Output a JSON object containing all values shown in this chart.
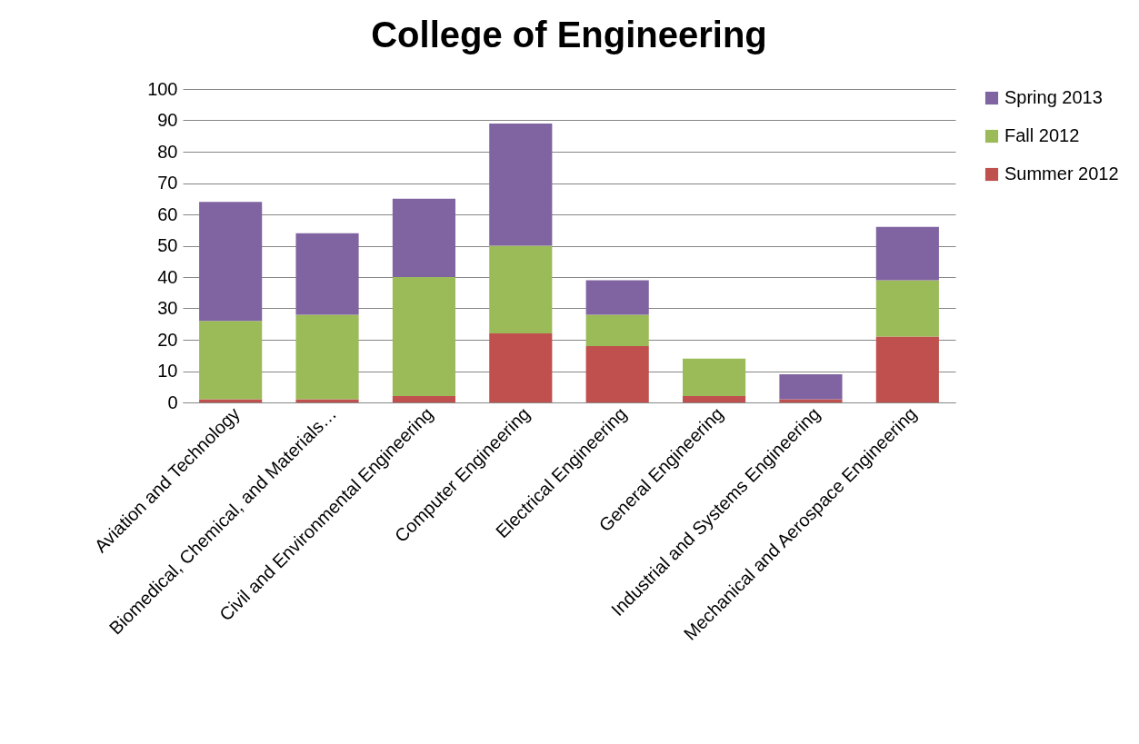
{
  "chart_data": {
    "type": "bar",
    "title": "College of Engineering",
    "stacked": true,
    "categories": [
      "Aviation and Technology",
      "Biomedical, Chemical, and Materials…",
      "Civil and Environmental Engineering",
      "Computer Engineering",
      "Electrical Engineering",
      "General Engineering",
      "Industrial and Systems Engineering",
      "Mechanical and Aerospace Engineering"
    ],
    "series": [
      {
        "name": "Summer 2012",
        "color": "#c0504d",
        "values": [
          1,
          1,
          2,
          22,
          18,
          2,
          1,
          21
        ]
      },
      {
        "name": "Fall 2012",
        "color": "#9bbb59",
        "values": [
          25,
          27,
          38,
          28,
          10,
          12,
          0,
          18
        ]
      },
      {
        "name": "Spring 2013",
        "color": "#8064a2",
        "values": [
          38,
          26,
          25,
          39,
          11,
          0,
          8,
          17
        ]
      }
    ],
    "ylim": [
      0,
      100
    ],
    "yticks": [
      0,
      10,
      20,
      30,
      40,
      50,
      60,
      70,
      80,
      90,
      100
    ],
    "grid": "y",
    "legend": "right"
  }
}
